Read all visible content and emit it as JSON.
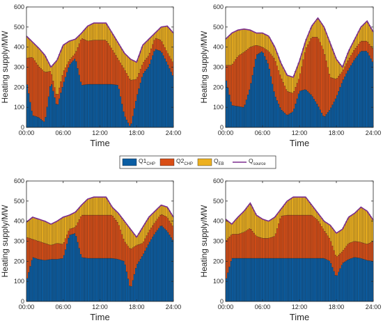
{
  "colors": {
    "Q1_CHP": "#0a5da3",
    "Q2_CHP": "#d94e16",
    "Q_EB": "#edb01f",
    "Q_source": "#7b2d8e",
    "axis": "#262626"
  },
  "legend": [
    {
      "key": "Q1_CHP",
      "base": "Q1",
      "sub": "CHP"
    },
    {
      "key": "Q2_CHP",
      "base": "Q2",
      "sub": "CHP"
    },
    {
      "key": "Q_EB",
      "base": "Q",
      "sub": "EB"
    },
    {
      "key": "Q_source",
      "base": "Q",
      "sub": "source"
    }
  ],
  "chart_data": [
    {
      "type": "bar",
      "stacked": true,
      "xlabel": "Time",
      "ylabel": "Heating supply/MW",
      "ylim": [
        0,
        600
      ],
      "yticks": [
        "0",
        "100",
        "200",
        "300",
        "400",
        "500",
        "600"
      ],
      "xticks": [
        "00:00",
        "06:00",
        "12:00",
        "18:00",
        "24:00"
      ],
      "hours": [
        0,
        1,
        2,
        3,
        4,
        5,
        6,
        7,
        8,
        9,
        10,
        11,
        12,
        13,
        14,
        15,
        16,
        17,
        18,
        19,
        20,
        21,
        22,
        23,
        24
      ],
      "Q_source": [
        455,
        425,
        395,
        360,
        300,
        335,
        410,
        430,
        440,
        470,
        505,
        520,
        520,
        520,
        470,
        420,
        370,
        340,
        325,
        410,
        440,
        470,
        500,
        505,
        470
      ],
      "Q1_CHP": [
        235,
        60,
        50,
        25,
        230,
        100,
        215,
        310,
        345,
        210,
        215,
        215,
        215,
        215,
        215,
        210,
        60,
        0,
        150,
        265,
        305,
        390,
        380,
        320,
        250
      ],
      "Q2_CHP": [
        110,
        290,
        255,
        250,
        50,
        50,
        60,
        25,
        25,
        235,
        215,
        220,
        220,
        220,
        175,
        130,
        230,
        235,
        90,
        55,
        55,
        55,
        55,
        55,
        70
      ]
    },
    {
      "type": "bar",
      "stacked": true,
      "xlabel": "Time",
      "ylabel": "Heating supply/MW",
      "ylim": [
        0,
        600
      ],
      "yticks": [
        "0",
        "100",
        "200",
        "300",
        "400",
        "500",
        "600"
      ],
      "xticks": [
        "00:00",
        "06:00",
        "12:00",
        "18:00",
        "24:00"
      ],
      "hours": [
        0,
        1,
        2,
        3,
        4,
        5,
        6,
        7,
        8,
        9,
        10,
        11,
        12,
        13,
        14,
        15,
        16,
        17,
        18,
        19,
        20,
        21,
        22,
        23,
        24
      ],
      "Q_source": [
        440,
        470,
        485,
        490,
        485,
        470,
        470,
        455,
        400,
        320,
        260,
        250,
        330,
        430,
        505,
        545,
        500,
        420,
        340,
        300,
        380,
        440,
        500,
        530,
        475
      ],
      "Q1_CHP": [
        250,
        110,
        105,
        100,
        200,
        360,
        380,
        310,
        160,
        90,
        60,
        80,
        180,
        190,
        160,
        110,
        50,
        90,
        150,
        230,
        290,
        340,
        380,
        380,
        320
      ],
      "Q2_CHP": [
        60,
        200,
        250,
        275,
        200,
        50,
        20,
        70,
        180,
        160,
        120,
        90,
        70,
        200,
        290,
        340,
        330,
        160,
        90,
        50,
        50,
        50,
        50,
        50,
        70
      ]
    },
    {
      "type": "bar",
      "stacked": true,
      "xlabel": "Time",
      "ylabel": "Heating supply/MW",
      "ylim": [
        0,
        600
      ],
      "yticks": [
        "0",
        "100",
        "200",
        "300",
        "400",
        "500",
        "600"
      ],
      "xticks": [
        "00:00",
        "06:00",
        "12:00",
        "18:00",
        "24:00"
      ],
      "hours": [
        0,
        1,
        2,
        3,
        4,
        5,
        6,
        7,
        8,
        9,
        10,
        11,
        12,
        13,
        14,
        15,
        16,
        17,
        18,
        19,
        20,
        21,
        22,
        23,
        24
      ],
      "Q_source": [
        395,
        420,
        410,
        400,
        385,
        400,
        420,
        430,
        445,
        480,
        510,
        520,
        520,
        520,
        470,
        440,
        400,
        360,
        320,
        370,
        420,
        450,
        480,
        470,
        420
      ],
      "Q1_CHP": [
        100,
        220,
        210,
        205,
        210,
        210,
        215,
        330,
        340,
        220,
        215,
        215,
        215,
        215,
        215,
        210,
        200,
        60,
        180,
        230,
        290,
        340,
        380,
        350,
        300
      ],
      "Q2_CHP": [
        220,
        90,
        90,
        85,
        70,
        80,
        70,
        30,
        30,
        210,
        215,
        215,
        215,
        215,
        215,
        180,
        100,
        200,
        100,
        60,
        60,
        55,
        55,
        70,
        70
      ]
    },
    {
      "type": "bar",
      "stacked": true,
      "xlabel": "Time",
      "ylabel": "Heating supply/MW",
      "ylim": [
        0,
        600
      ],
      "yticks": [
        "0",
        "100",
        "200",
        "300",
        "400",
        "500",
        "600"
      ],
      "xticks": [
        "00:00",
        "06:00",
        "12:00",
        "18:00",
        "24:00"
      ],
      "hours": [
        0,
        1,
        2,
        3,
        4,
        5,
        6,
        7,
        8,
        9,
        10,
        11,
        12,
        13,
        14,
        15,
        16,
        17,
        18,
        19,
        20,
        21,
        22,
        23,
        24
      ],
      "Q_source": [
        410,
        385,
        420,
        450,
        490,
        430,
        410,
        400,
        420,
        460,
        500,
        520,
        520,
        520,
        480,
        440,
        400,
        380,
        340,
        360,
        420,
        440,
        470,
        450,
        405
      ],
      "Q1_CHP": [
        100,
        215,
        215,
        215,
        215,
        215,
        215,
        215,
        215,
        215,
        215,
        215,
        215,
        215,
        215,
        215,
        215,
        200,
        120,
        190,
        210,
        220,
        215,
        205,
        200
      ],
      "Q2_CHP": [
        200,
        120,
        120,
        130,
        150,
        110,
        100,
        100,
        110,
        210,
        215,
        215,
        215,
        215,
        215,
        190,
        140,
        110,
        100,
        60,
        80,
        80,
        80,
        80,
        100
      ]
    }
  ]
}
